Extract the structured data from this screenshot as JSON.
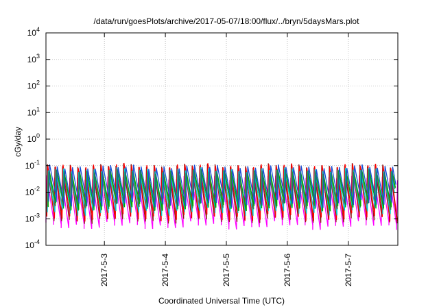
{
  "chart_data": {
    "type": "line",
    "title": "/data/run/goesPlots/archive/2017-05-07/18:00/flux/../bryn/5daysMars.plot",
    "xlabel": "Coordinated Universal Time (UTC)",
    "ylabel": "cGy/day",
    "yscale": "log",
    "ylim": [
      0.0001,
      10000
    ],
    "xlim": [
      "2017-05-02 01:00",
      "2017-05-07 19:30"
    ],
    "grid": true,
    "legend": "none",
    "y_ticks": [
      {
        "base": "10",
        "exp": "-4",
        "value": 0.0001
      },
      {
        "base": "10",
        "exp": "-3",
        "value": 0.001
      },
      {
        "base": "10",
        "exp": "-2",
        "value": 0.01
      },
      {
        "base": "10",
        "exp": "-1",
        "value": 0.1
      },
      {
        "base": "10",
        "exp": "0",
        "value": 1
      },
      {
        "base": "10",
        "exp": "1",
        "value": 10
      },
      {
        "base": "10",
        "exp": "2",
        "value": 100
      },
      {
        "base": "10",
        "exp": "3",
        "value": 1000
      },
      {
        "base": "10",
        "exp": "4",
        "value": 10000
      }
    ],
    "x_ticks": [
      {
        "label": "2017-5-3",
        "value": "2017-05-03 00:00"
      },
      {
        "label": "2017-5-4",
        "value": "2017-05-04 00:00"
      },
      {
        "label": "2017-5-5",
        "value": "2017-05-05 00:00"
      },
      {
        "label": "2017-5-6",
        "value": "2017-05-06 00:00"
      },
      {
        "label": "2017-5-7",
        "value": "2017-05-07 00:00"
      }
    ],
    "series": [
      {
        "color": "#ff00ff",
        "min": 0.0006,
        "max": 0.035
      },
      {
        "color": "#8b1a1a",
        "min": 0.001,
        "max": 0.1
      },
      {
        "color": "#ff0000",
        "min": 0.0012,
        "max": 0.1
      },
      {
        "color": "#00cccc",
        "min": 0.002,
        "max": 0.07
      },
      {
        "color": "#2e8b57",
        "min": 0.003,
        "max": 0.06
      },
      {
        "color": "#00aa00",
        "min": 0.003,
        "max": 0.06
      },
      {
        "color": "#1a4fd6",
        "min": 0.004,
        "max": 0.09
      }
    ],
    "period_hours": 3.0
  }
}
